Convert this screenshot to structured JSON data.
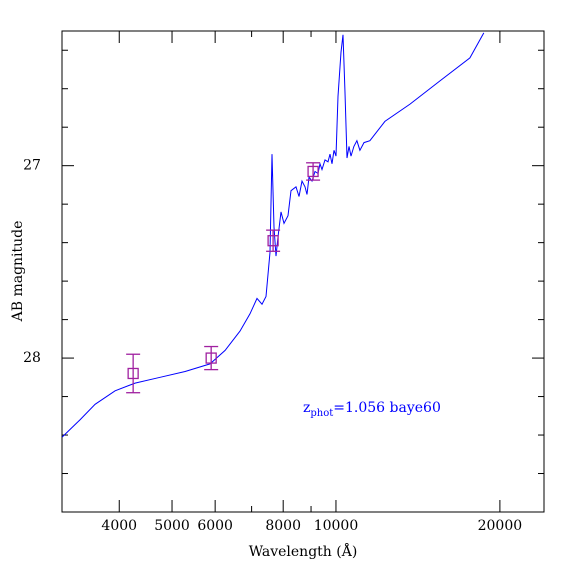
{
  "chart_data": {
    "type": "sed",
    "xlabel": "Wavelength (Å)",
    "ylabel": "AB magnitude",
    "annotation": {
      "parts": [
        "z",
        "phot",
        "=1.056 baye60"
      ],
      "color": "#0000ff"
    },
    "xscale": "log",
    "xlim": [
      3140,
      24100
    ],
    "ylim": [
      28.8,
      26.3
    ],
    "xticks": [
      4000,
      5000,
      6000,
      8000,
      10000,
      20000
    ],
    "xminorticks": [
      7000,
      9000
    ],
    "yticks": [
      27,
      28
    ],
    "yminorticks": [
      26.4,
      26.6,
      26.8,
      27.2,
      27.4,
      27.6,
      27.8,
      28.2,
      28.4,
      28.6
    ],
    "series": [
      {
        "kind": "line",
        "color": "#0000ff",
        "x": [
          3142,
          3391,
          3612,
          3930,
          4277,
          4755,
          5284,
          5872,
          6257,
          6665,
          6954,
          7161,
          7314,
          7440,
          7566,
          7630,
          7695,
          7760,
          7826,
          7925,
          8027,
          8165,
          8270,
          8445,
          8553,
          8662,
          8772,
          8847,
          8923,
          9036,
          9152,
          9268,
          9346,
          9425,
          9546,
          9667,
          9750,
          9833,
          9916,
          10000,
          10085,
          10214,
          10300,
          10388,
          10476,
          10565,
          10655,
          10790,
          10928,
          11067,
          11257,
          11542,
          12300,
          13674,
          15513,
          17620,
          18687
        ],
        "values": [
          28.41,
          28.32,
          28.24,
          28.17,
          28.13,
          28.1,
          28.07,
          28.03,
          27.96,
          27.86,
          27.77,
          27.69,
          27.72,
          27.68,
          27.45,
          26.94,
          27.32,
          27.47,
          27.37,
          27.24,
          27.3,
          27.26,
          27.13,
          27.11,
          27.16,
          27.08,
          27.11,
          27.15,
          27.06,
          27.08,
          27.03,
          27.04,
          26.99,
          27.02,
          26.97,
          26.98,
          26.94,
          26.99,
          26.92,
          26.95,
          26.64,
          26.41,
          26.32,
          26.62,
          26.96,
          26.9,
          26.95,
          26.9,
          26.87,
          26.92,
          26.88,
          26.87,
          26.77,
          26.68,
          26.56,
          26.44,
          26.31
        ]
      },
      {
        "kind": "points",
        "color": "#a020a0",
        "x": [
          4242,
          5900,
          7666,
          9078
        ],
        "values": [
          28.08,
          28.0,
          27.39,
          27.03
        ],
        "errors": [
          0.1,
          0.06,
          0.055,
          0.045
        ]
      }
    ]
  }
}
